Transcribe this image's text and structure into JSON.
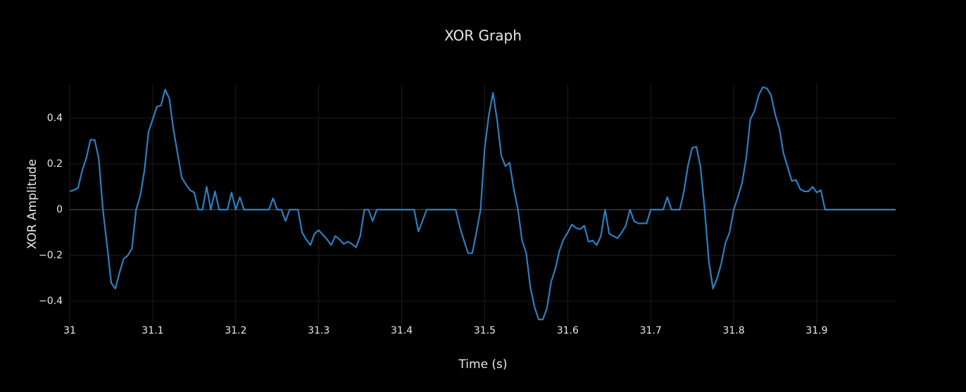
{
  "chart_data": {
    "type": "line",
    "title": "XOR Graph",
    "x_label": "Time (s)",
    "y_label": "XOR Amplitude",
    "color": "#2e7ec0",
    "grid": true,
    "xlim": [
      31,
      31.995
    ],
    "xticks": [
      31,
      31.1,
      31.2,
      31.3,
      31.4,
      31.5,
      31.6,
      31.7,
      31.8,
      31.9
    ],
    "ylim": [
      -0.5,
      0.55
    ],
    "yticks": [
      {
        "value": -0.4,
        "label": "−0.4"
      },
      {
        "value": -0.2,
        "label": "−0.2"
      },
      0,
      0.2,
      0.4
    ],
    "x": [
      31,
      31.005,
      31.01,
      31.015,
      31.02,
      31.025,
      31.03,
      31.035,
      31.04,
      31.045,
      31.05,
      31.055,
      31.06,
      31.065,
      31.07,
      31.075,
      31.08,
      31.085,
      31.09,
      31.095,
      31.1,
      31.105,
      31.11,
      31.115,
      31.12,
      31.125,
      31.13,
      31.135,
      31.14,
      31.145,
      31.15,
      31.155,
      31.16,
      31.165,
      31.17,
      31.175,
      31.18,
      31.185,
      31.19,
      31.195,
      31.2,
      31.205,
      31.21,
      31.215,
      31.22,
      31.225,
      31.23,
      31.235,
      31.24,
      31.245,
      31.25,
      31.255,
      31.26,
      31.265,
      31.27,
      31.275,
      31.28,
      31.285,
      31.29,
      31.295,
      31.3,
      31.305,
      31.31,
      31.315,
      31.32,
      31.325,
      31.33,
      31.335,
      31.34,
      31.345,
      31.35,
      31.355,
      31.36,
      31.365,
      31.37,
      31.375,
      31.38,
      31.385,
      31.39,
      31.395,
      31.4,
      31.405,
      31.41,
      31.415,
      31.42,
      31.425,
      31.43,
      31.435,
      31.44,
      31.445,
      31.45,
      31.455,
      31.46,
      31.465,
      31.47,
      31.475,
      31.48,
      31.485,
      31.49,
      31.495,
      31.5,
      31.505,
      31.51,
      31.515,
      31.52,
      31.525,
      31.53,
      31.535,
      31.54,
      31.545,
      31.55,
      31.555,
      31.56,
      31.565,
      31.57,
      31.575,
      31.58,
      31.585,
      31.59,
      31.595,
      31.6,
      31.605,
      31.61,
      31.615,
      31.62,
      31.625,
      31.63,
      31.635,
      31.64,
      31.645,
      31.65,
      31.655,
      31.66,
      31.665,
      31.67,
      31.675,
      31.68,
      31.685,
      31.69,
      31.695,
      31.7,
      31.705,
      31.71,
      31.715,
      31.72,
      31.725,
      31.73,
      31.735,
      31.74,
      31.745,
      31.75,
      31.755,
      31.76,
      31.765,
      31.77,
      31.775,
      31.78,
      31.785,
      31.79,
      31.795,
      31.8,
      31.805,
      31.81,
      31.815,
      31.82,
      31.825,
      31.83,
      31.835,
      31.84,
      31.845,
      31.85,
      31.855,
      31.86,
      31.865,
      31.87,
      31.875,
      31.88,
      31.885,
      31.89,
      31.895,
      31.9,
      31.905,
      31.91,
      31.915,
      31.92,
      31.925,
      31.93,
      31.935,
      31.94,
      31.945,
      31.95,
      31.955,
      31.96,
      31.965,
      31.97,
      31.975,
      31.98,
      31.985,
      31.99,
      31.995
    ],
    "values": [
      0.08,
      0.085,
      0.095,
      0.17,
      0.225,
      0.305,
      0.305,
      0.225,
      0,
      -0.155,
      -0.32,
      -0.345,
      -0.275,
      -0.215,
      -0.2,
      -0.17,
      0,
      0.06,
      0.17,
      0.34,
      0.395,
      0.45,
      0.455,
      0.525,
      0.485,
      0.35,
      0.245,
      0.14,
      0.11,
      0.085,
      0.075,
      0,
      0,
      0.1,
      0,
      0.08,
      0,
      0,
      0,
      0.075,
      0,
      0.055,
      0,
      0,
      0,
      0,
      0,
      0,
      0,
      0.05,
      0,
      0,
      -0.05,
      0,
      0,
      0,
      -0.1,
      -0.13,
      -0.155,
      -0.105,
      -0.09,
      -0.11,
      -0.13,
      -0.155,
      -0.115,
      -0.13,
      -0.15,
      -0.14,
      -0.15,
      -0.165,
      -0.115,
      0,
      0,
      -0.05,
      0,
      0,
      0,
      0,
      0,
      0,
      0,
      0,
      0,
      0,
      -0.095,
      -0.05,
      0,
      0,
      0,
      0,
      0,
      0,
      0,
      0,
      -0.075,
      -0.135,
      -0.19,
      -0.19,
      -0.1,
      0,
      0.27,
      0.415,
      0.51,
      0.39,
      0.235,
      0.19,
      0.205,
      0.09,
      0,
      -0.135,
      -0.19,
      -0.34,
      -0.425,
      -0.48,
      -0.48,
      -0.43,
      -0.315,
      -0.26,
      -0.18,
      -0.13,
      -0.1,
      -0.065,
      -0.08,
      -0.085,
      -0.07,
      -0.14,
      -0.135,
      -0.155,
      -0.115,
      0,
      -0.105,
      -0.115,
      -0.125,
      -0.1,
      -0.07,
      0,
      -0.05,
      -0.06,
      -0.06,
      -0.06,
      0,
      0,
      0,
      0,
      0.055,
      0,
      0,
      0,
      0.08,
      0.195,
      0.27,
      0.275,
      0.185,
      0,
      -0.225,
      -0.345,
      -0.3,
      -0.235,
      -0.145,
      -0.1,
      0,
      0.055,
      0.115,
      0.225,
      0.395,
      0.43,
      0.5,
      0.535,
      0.53,
      0.5,
      0.415,
      0.355,
      0.245,
      0.185,
      0.125,
      0.13,
      0.09,
      0.08,
      0.08,
      0.1,
      0.075,
      0.085,
      0,
      0,
      0,
      0,
      0,
      0,
      0,
      0,
      0,
      0,
      0,
      0,
      0,
      0,
      0,
      0,
      0,
      0
    ]
  }
}
